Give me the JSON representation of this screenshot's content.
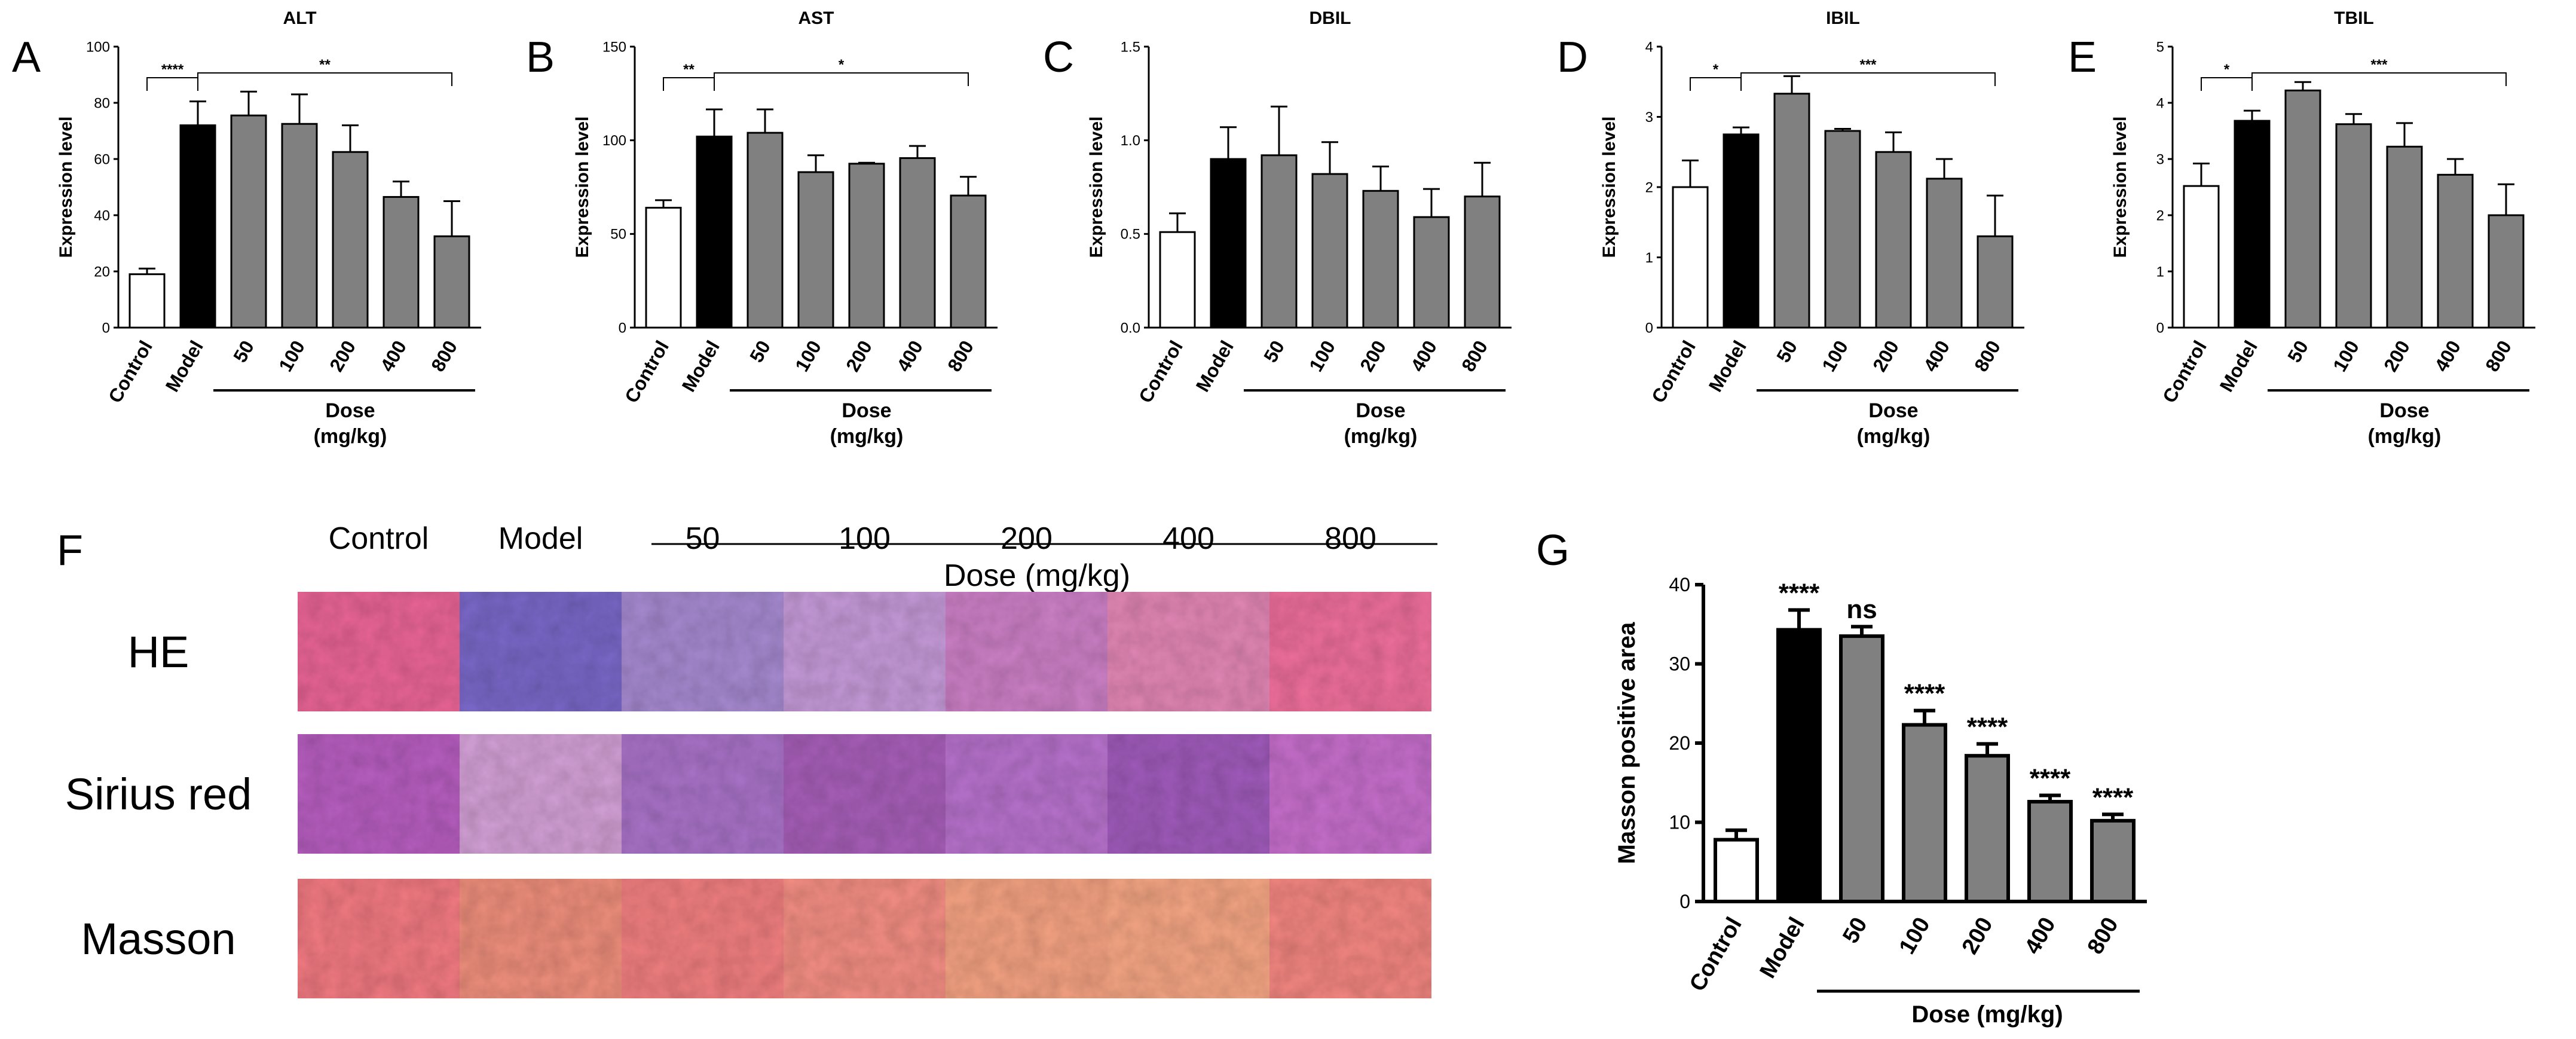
{
  "figure": {
    "dose_label": "Dose",
    "dose_unit": "(mg/kg)",
    "dose_label_combined": "Dose (mg/kg)"
  },
  "chart_data": [
    {
      "panel": "A",
      "type": "bar",
      "title": "ALT",
      "xlabel": "Dose (mg/kg)",
      "ylabel": "Expression level",
      "categories": [
        "Control",
        "Model",
        "50",
        "100",
        "200",
        "400",
        "800"
      ],
      "values": [
        19,
        72,
        75.5,
        72.5,
        62.5,
        46.5,
        32.5
      ],
      "errors": [
        2,
        8.5,
        8.5,
        10.5,
        9.5,
        5.5,
        12.5
      ],
      "ylim": [
        0,
        100
      ],
      "yticks": [
        "0",
        "20",
        "40",
        "60",
        "80",
        "100"
      ],
      "significance": [
        {
          "from": 0,
          "to": 1,
          "label": "****"
        },
        {
          "from": 1,
          "to": 6,
          "label": "**"
        }
      ]
    },
    {
      "panel": "B",
      "type": "bar",
      "title": "AST",
      "xlabel": "Dose (mg/kg)",
      "ylabel": "Expression level",
      "categories": [
        "Control",
        "Model",
        "50",
        "100",
        "200",
        "400",
        "800"
      ],
      "values": [
        64,
        102,
        104,
        83,
        87.5,
        90.5,
        70.5
      ],
      "errors": [
        4,
        14.5,
        12.5,
        9,
        0.5,
        6.5,
        10
      ],
      "ylim": [
        0,
        150
      ],
      "yticks": [
        "0",
        "50",
        "100",
        "150"
      ],
      "significance": [
        {
          "from": 0,
          "to": 1,
          "label": "**"
        },
        {
          "from": 1,
          "to": 6,
          "label": "*"
        }
      ]
    },
    {
      "panel": "C",
      "type": "bar",
      "title": "DBIL",
      "xlabel": "Dose (mg/kg)",
      "ylabel": "Expression level",
      "categories": [
        "Control",
        "Model",
        "50",
        "100",
        "200",
        "400",
        "800"
      ],
      "values": [
        0.51,
        0.9,
        0.92,
        0.82,
        0.73,
        0.59,
        0.7
      ],
      "errors": [
        0.1,
        0.17,
        0.26,
        0.17,
        0.13,
        0.15,
        0.18
      ],
      "ylim": [
        0,
        1.5
      ],
      "yticks": [
        "0.0",
        "0.5",
        "1.0",
        "1.5"
      ],
      "significance": []
    },
    {
      "panel": "D",
      "type": "bar",
      "title": "IBIL",
      "xlabel": "Dose (mg/kg)",
      "ylabel": "Expression level",
      "categories": [
        "Control",
        "Model",
        "50",
        "100",
        "200",
        "400",
        "800"
      ],
      "values": [
        2.0,
        2.75,
        3.33,
        2.8,
        2.5,
        2.12,
        1.3
      ],
      "errors": [
        0.38,
        0.1,
        0.25,
        0.03,
        0.28,
        0.28,
        0.58
      ],
      "ylim": [
        0,
        4
      ],
      "yticks": [
        "0",
        "1",
        "2",
        "3",
        "4"
      ],
      "significance": [
        {
          "from": 0,
          "to": 1,
          "label": "*"
        },
        {
          "from": 1,
          "to": 6,
          "label": "***"
        }
      ]
    },
    {
      "panel": "E",
      "type": "bar",
      "title": "TBIL",
      "xlabel": "Dose (mg/kg)",
      "ylabel": "Expression level",
      "categories": [
        "Control",
        "Model",
        "50",
        "100",
        "200",
        "400",
        "800"
      ],
      "values": [
        2.52,
        3.68,
        4.22,
        3.62,
        3.22,
        2.72,
        2.0
      ],
      "errors": [
        0.4,
        0.18,
        0.15,
        0.18,
        0.42,
        0.28,
        0.55
      ],
      "ylim": [
        0,
        5
      ],
      "yticks": [
        "0",
        "1",
        "2",
        "3",
        "4",
        "5"
      ],
      "significance": [
        {
          "from": 0,
          "to": 1,
          "label": "*"
        },
        {
          "from": 1,
          "to": 6,
          "label": "***"
        }
      ]
    },
    {
      "panel": "G",
      "type": "bar",
      "title": "",
      "xlabel": "Dose (mg/kg)",
      "ylabel": "Masson positive area",
      "categories": [
        "Control",
        "Model",
        "50",
        "100",
        "200",
        "400",
        "800"
      ],
      "values": [
        7.8,
        34.3,
        33.5,
        22.3,
        18.4,
        12.6,
        10.2
      ],
      "errors": [
        1.2,
        2.5,
        1.2,
        1.8,
        1.5,
        0.8,
        0.8
      ],
      "ylim": [
        0,
        40
      ],
      "yticks": [
        "0",
        "10",
        "20",
        "30",
        "40"
      ],
      "bar_labels": [
        "",
        "****",
        "ns",
        "****",
        "****",
        "****",
        "****"
      ]
    }
  ],
  "histology": {
    "panel": "F",
    "columns": [
      "Control",
      "Model",
      "50",
      "100",
      "200",
      "400",
      "800"
    ],
    "dose_columns_header": "Dose (mg/kg)",
    "rows": [
      {
        "label": "HE",
        "tones": [
          "#ea6596",
          "#7a68c8",
          "#a68ad0",
          "#c59ad8",
          "#cc80c6",
          "#e287b5",
          "#ee6f9b"
        ]
      },
      {
        "label": "Sirius red",
        "tones": [
          "#b75ec0",
          "#d3a0d6",
          "#a973c8",
          "#a75fb8",
          "#b772cc",
          "#a05bbb",
          "#c66fcc"
        ]
      },
      {
        "label": "Masson",
        "tones": [
          "#f27a82",
          "#ef8f7d",
          "#f17f80",
          "#f38e83",
          "#f4a282",
          "#f5a684",
          "#f38681"
        ]
      }
    ]
  },
  "colors": {
    "control": "#ffffff",
    "model": "#000000",
    "dose": "#808080",
    "axis": "#000000"
  }
}
